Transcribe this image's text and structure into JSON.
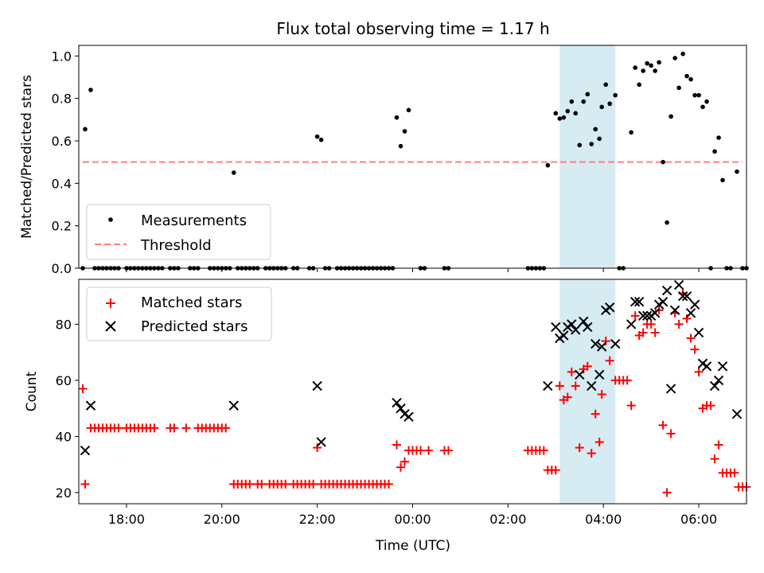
{
  "title": "Flux total observing time = 1.17 h",
  "colors": {
    "measurement": "#000000",
    "threshold": "#ff7f7f",
    "matched": "#ff0000",
    "predicted": "#000000",
    "highlight": "#add8e6"
  },
  "chart_data": [
    {
      "type": "scatter",
      "ylabel": "Matched/Predicted stars",
      "xlabel": "",
      "xlim": [
        17.0,
        7.0
      ],
      "ylim": [
        0.0,
        1.05
      ],
      "yticks": [
        0.0,
        0.2,
        0.4,
        0.6,
        0.8,
        1.0
      ],
      "ytick_labels": [
        "0.0",
        "0.2",
        "0.4",
        "0.6",
        "0.8",
        "1.0"
      ],
      "legend": {
        "placement": "bottom-left",
        "entries": [
          "Measurements",
          "Threshold"
        ]
      },
      "highlight_span": [
        "03:05",
        "04:15"
      ],
      "threshold": {
        "name": "Threshold",
        "value": 0.5,
        "x_range": [
          "17:05",
          "06:55"
        ]
      },
      "measurements": {
        "name": "Measurements",
        "points": [
          [
            "17:08",
            0.655
          ],
          [
            "17:15",
            0.84
          ],
          [
            "20:15",
            0.45
          ],
          [
            "22:00",
            0.62
          ],
          [
            "22:05",
            0.605
          ],
          [
            "23:40",
            0.71
          ],
          [
            "23:45",
            0.575
          ],
          [
            "23:50",
            0.645
          ],
          [
            "23:55",
            0.745
          ],
          [
            "02:50",
            0.485
          ],
          [
            "03:00",
            0.73
          ],
          [
            "03:05",
            0.705
          ],
          [
            "03:10",
            0.71
          ],
          [
            "03:15",
            0.74
          ],
          [
            "03:20",
            0.785
          ],
          [
            "03:25",
            0.73
          ],
          [
            "03:30",
            0.58
          ],
          [
            "03:35",
            0.785
          ],
          [
            "03:40",
            0.82
          ],
          [
            "03:45",
            0.585
          ],
          [
            "03:50",
            0.655
          ],
          [
            "03:55",
            0.61
          ],
          [
            "03:58",
            0.76
          ],
          [
            "04:03",
            0.865
          ],
          [
            "04:08",
            0.775
          ],
          [
            "04:15",
            0.815
          ],
          [
            "04:35",
            0.64
          ],
          [
            "04:40",
            0.945
          ],
          [
            "04:45",
            0.865
          ],
          [
            "04:50",
            0.93
          ],
          [
            "04:55",
            0.965
          ],
          [
            "05:00",
            0.955
          ],
          [
            "05:05",
            0.93
          ],
          [
            "05:10",
            0.97
          ],
          [
            "05:15",
            0.5
          ],
          [
            "05:20",
            0.215
          ],
          [
            "05:25",
            0.715
          ],
          [
            "05:30",
            0.99
          ],
          [
            "05:35",
            0.85
          ],
          [
            "05:40",
            1.01
          ],
          [
            "05:45",
            0.905
          ],
          [
            "05:50",
            0.89
          ],
          [
            "05:55",
            0.815
          ],
          [
            "06:00",
            0.815
          ],
          [
            "06:05",
            0.76
          ],
          [
            "06:10",
            0.785
          ],
          [
            "06:15",
            0.0
          ],
          [
            "06:20",
            0.55
          ],
          [
            "06:25",
            0.615
          ],
          [
            "06:30",
            0.415
          ],
          [
            "06:48",
            0.455
          ]
        ],
        "zeros": [
          "17:05",
          "17:20",
          "17:25",
          "17:30",
          "17:35",
          "17:40",
          "17:45",
          "17:50",
          "18:00",
          "18:05",
          "18:10",
          "18:15",
          "18:20",
          "18:25",
          "18:30",
          "18:35",
          "18:40",
          "18:45",
          "18:55",
          "19:00",
          "19:05",
          "19:20",
          "19:25",
          "19:30",
          "19:45",
          "19:50",
          "19:55",
          "20:00",
          "20:05",
          "20:10",
          "20:20",
          "20:25",
          "20:30",
          "20:35",
          "20:40",
          "20:45",
          "20:55",
          "21:00",
          "21:05",
          "21:10",
          "21:15",
          "21:20",
          "21:30",
          "21:35",
          "21:50",
          "21:55",
          "22:10",
          "22:15",
          "22:25",
          "22:30",
          "22:35",
          "22:40",
          "22:45",
          "22:50",
          "22:55",
          "23:00",
          "23:05",
          "23:10",
          "23:15",
          "23:20",
          "23:25",
          "23:30",
          "23:35",
          "00:10",
          "00:15",
          "00:40",
          "00:45",
          "02:25",
          "02:30",
          "02:35",
          "02:40",
          "02:45",
          "04:20",
          "04:25",
          "06:35",
          "06:40",
          "06:55",
          "07:00"
        ]
      }
    },
    {
      "type": "scatter",
      "ylabel": "Count",
      "xlabel": "Time (UTC)",
      "xlim": [
        17.0,
        7.0
      ],
      "ylim": [
        16,
        96
      ],
      "yticks": [
        20,
        40,
        60,
        80
      ],
      "ytick_labels": [
        "20",
        "40",
        "60",
        "80"
      ],
      "xtick_labels": [
        "18:00",
        "20:00",
        "22:00",
        "00:00",
        "02:00",
        "04:00",
        "06:00"
      ],
      "legend": {
        "placement": "top-left",
        "entries": [
          "Matched stars",
          "Predicted stars"
        ]
      },
      "highlight_span": [
        "03:05",
        "04:15"
      ],
      "series": [
        {
          "name": "Matched stars",
          "points": [
            [
              "17:05",
              57
            ],
            [
              "17:08",
              23
            ],
            [
              "17:15",
              43
            ],
            [
              "17:20",
              43
            ],
            [
              "17:25",
              43
            ],
            [
              "17:30",
              43
            ],
            [
              "17:35",
              43
            ],
            [
              "17:40",
              43
            ],
            [
              "17:45",
              43
            ],
            [
              "17:50",
              43
            ],
            [
              "18:00",
              43
            ],
            [
              "18:05",
              43
            ],
            [
              "18:10",
              43
            ],
            [
              "18:15",
              43
            ],
            [
              "18:20",
              43
            ],
            [
              "18:25",
              43
            ],
            [
              "18:30",
              43
            ],
            [
              "18:35",
              43
            ],
            [
              "18:55",
              43
            ],
            [
              "19:00",
              43
            ],
            [
              "19:15",
              43
            ],
            [
              "19:30",
              43
            ],
            [
              "19:35",
              43
            ],
            [
              "19:40",
              43
            ],
            [
              "19:45",
              43
            ],
            [
              "19:50",
              43
            ],
            [
              "19:55",
              43
            ],
            [
              "20:00",
              43
            ],
            [
              "20:05",
              43
            ],
            [
              "20:15",
              23
            ],
            [
              "20:20",
              23
            ],
            [
              "20:25",
              23
            ],
            [
              "20:30",
              23
            ],
            [
              "20:35",
              23
            ],
            [
              "20:45",
              23
            ],
            [
              "20:50",
              23
            ],
            [
              "21:00",
              23
            ],
            [
              "21:05",
              23
            ],
            [
              "21:10",
              23
            ],
            [
              "21:15",
              23
            ],
            [
              "21:20",
              23
            ],
            [
              "21:30",
              23
            ],
            [
              "21:35",
              23
            ],
            [
              "21:40",
              23
            ],
            [
              "21:45",
              23
            ],
            [
              "21:50",
              23
            ],
            [
              "21:55",
              23
            ],
            [
              "22:00",
              36
            ],
            [
              "22:05",
              23
            ],
            [
              "22:10",
              23
            ],
            [
              "22:15",
              23
            ],
            [
              "22:20",
              23
            ],
            [
              "22:25",
              23
            ],
            [
              "22:30",
              23
            ],
            [
              "22:35",
              23
            ],
            [
              "22:40",
              23
            ],
            [
              "22:45",
              23
            ],
            [
              "22:50",
              23
            ],
            [
              "22:55",
              23
            ],
            [
              "23:00",
              23
            ],
            [
              "23:05",
              23
            ],
            [
              "23:10",
              23
            ],
            [
              "23:15",
              23
            ],
            [
              "23:20",
              23
            ],
            [
              "23:25",
              23
            ],
            [
              "23:30",
              23
            ],
            [
              "23:40",
              37
            ],
            [
              "23:45",
              29
            ],
            [
              "23:50",
              31
            ],
            [
              "23:55",
              35
            ],
            [
              "00:00",
              35
            ],
            [
              "00:05",
              35
            ],
            [
              "00:10",
              35
            ],
            [
              "00:20",
              35
            ],
            [
              "00:40",
              35
            ],
            [
              "00:45",
              35
            ],
            [
              "02:25",
              35
            ],
            [
              "02:30",
              35
            ],
            [
              "02:35",
              35
            ],
            [
              "02:40",
              35
            ],
            [
              "02:45",
              35
            ],
            [
              "02:50",
              28
            ],
            [
              "02:55",
              28
            ],
            [
              "03:00",
              28
            ],
            [
              "03:05",
              58
            ],
            [
              "03:10",
              53
            ],
            [
              "03:15",
              54
            ],
            [
              "03:20",
              63
            ],
            [
              "03:25",
              58
            ],
            [
              "03:30",
              36
            ],
            [
              "03:35",
              64
            ],
            [
              "03:40",
              65
            ],
            [
              "03:45",
              34
            ],
            [
              "03:50",
              48
            ],
            [
              "03:55",
              38
            ],
            [
              "03:58",
              55
            ],
            [
              "04:03",
              74
            ],
            [
              "04:08",
              67
            ],
            [
              "04:15",
              60
            ],
            [
              "04:20",
              60
            ],
            [
              "04:25",
              60
            ],
            [
              "04:30",
              60
            ],
            [
              "04:35",
              51
            ],
            [
              "04:40",
              83
            ],
            [
              "04:45",
              76
            ],
            [
              "04:50",
              77
            ],
            [
              "04:55",
              80
            ],
            [
              "05:00",
              80
            ],
            [
              "05:05",
              77
            ],
            [
              "05:10",
              85
            ],
            [
              "05:15",
              44
            ],
            [
              "05:20",
              20
            ],
            [
              "05:25",
              41
            ],
            [
              "05:30",
              84
            ],
            [
              "05:35",
              80
            ],
            [
              "05:40",
              91
            ],
            [
              "05:45",
              82
            ],
            [
              "05:50",
              75
            ],
            [
              "05:55",
              71
            ],
            [
              "06:00",
              63
            ],
            [
              "06:05",
              50
            ],
            [
              "06:10",
              51
            ],
            [
              "06:15",
              51
            ],
            [
              "06:20",
              32
            ],
            [
              "06:25",
              37
            ],
            [
              "06:30",
              27
            ],
            [
              "06:35",
              27
            ],
            [
              "06:40",
              27
            ],
            [
              "06:45",
              27
            ],
            [
              "06:50",
              22
            ],
            [
              "06:55",
              22
            ],
            [
              "07:00",
              22
            ]
          ]
        },
        {
          "name": "Predicted stars",
          "points": [
            [
              "17:08",
              35
            ],
            [
              "17:15",
              51
            ],
            [
              "20:15",
              51
            ],
            [
              "22:00",
              58
            ],
            [
              "22:05",
              38
            ],
            [
              "23:40",
              52
            ],
            [
              "23:45",
              50
            ],
            [
              "23:50",
              48
            ],
            [
              "23:55",
              47
            ],
            [
              "02:50",
              58
            ],
            [
              "03:00",
              79
            ],
            [
              "03:05",
              75
            ],
            [
              "03:10",
              76
            ],
            [
              "03:15",
              79
            ],
            [
              "03:20",
              80
            ],
            [
              "03:25",
              78
            ],
            [
              "03:30",
              62
            ],
            [
              "03:35",
              81
            ],
            [
              "03:40",
              79
            ],
            [
              "03:45",
              58
            ],
            [
              "03:50",
              73
            ],
            [
              "03:55",
              62
            ],
            [
              "03:58",
              72
            ],
            [
              "04:03",
              85
            ],
            [
              "04:08",
              86
            ],
            [
              "04:15",
              73
            ],
            [
              "04:35",
              80
            ],
            [
              "04:40",
              88
            ],
            [
              "04:45",
              88
            ],
            [
              "04:50",
              83
            ],
            [
              "04:55",
              83
            ],
            [
              "05:00",
              83
            ],
            [
              "05:05",
              84
            ],
            [
              "05:10",
              87
            ],
            [
              "05:15",
              88
            ],
            [
              "05:20",
              92
            ],
            [
              "05:25",
              57
            ],
            [
              "05:30",
              85
            ],
            [
              "05:35",
              94
            ],
            [
              "05:40",
              90
            ],
            [
              "05:45",
              90
            ],
            [
              "05:50",
              84
            ],
            [
              "05:55",
              87
            ],
            [
              "06:00",
              77
            ],
            [
              "06:05",
              66
            ],
            [
              "06:10",
              65
            ],
            [
              "06:20",
              58
            ],
            [
              "06:25",
              60
            ],
            [
              "06:30",
              65
            ],
            [
              "06:48",
              48
            ]
          ]
        }
      ]
    }
  ]
}
